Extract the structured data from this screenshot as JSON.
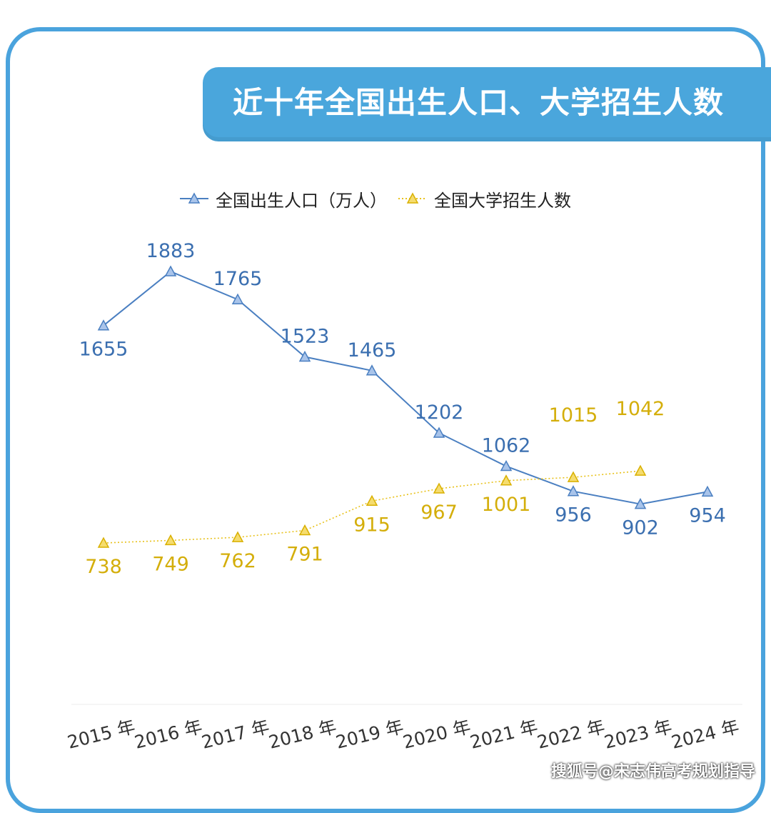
{
  "title": "近十年全国出生人口、大学招生人数",
  "footer": "搜狐号@宋志伟高考规划指导",
  "colors": {
    "blue": "#4a7fc1",
    "yellow": "#e8c21c",
    "banner": "#4aa6dc"
  },
  "chart_data": {
    "type": "line",
    "title": "近十年全国出生人口、大学招生人数",
    "categories": [
      "2015 年",
      "2016 年",
      "2017 年",
      "2018 年",
      "2019 年",
      "2020 年",
      "2021 年",
      "2022 年",
      "2023 年",
      "2024 年"
    ],
    "series": [
      {
        "name": "全国出生人口（万人）",
        "values": [
          1655,
          1883,
          1765,
          1523,
          1465,
          1202,
          1062,
          956,
          902,
          954
        ],
        "color": "#4a7fc1",
        "style": "solid",
        "marker": "triangle"
      },
      {
        "name": "全国大学招生人数",
        "values": [
          738,
          749,
          762,
          791,
          915,
          967,
          1001,
          1015,
          1042,
          null
        ],
        "color": "#e8c21c",
        "style": "dotted",
        "marker": "triangle"
      }
    ],
    "legend_position": "top",
    "grid": false,
    "xlabel": "",
    "ylabel": ""
  }
}
